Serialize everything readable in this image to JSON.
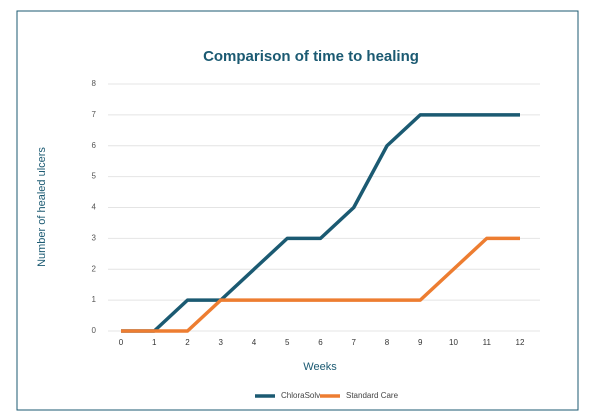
{
  "chart_data": {
    "type": "line",
    "title": "Comparison of time to healing",
    "xlabel": "Weeks",
    "ylabel": "Number of healed ulcers",
    "categories": [
      "0",
      "1",
      "2",
      "3",
      "4",
      "5",
      "6",
      "7",
      "8",
      "9",
      "10",
      "11",
      "12"
    ],
    "series": [
      {
        "name": "ChloraSolv",
        "color": "#1b5a72",
        "values": [
          0,
          0,
          1,
          1,
          2,
          3,
          3,
          4,
          6,
          7,
          7,
          7,
          7
        ]
      },
      {
        "name": "Standard Care",
        "color": "#ed7d31",
        "values": [
          0,
          0,
          0,
          1,
          1,
          1,
          1,
          1,
          1,
          1,
          2,
          3,
          3
        ]
      }
    ],
    "ylim": [
      0,
      8
    ],
    "yticks": [
      0,
      1,
      2,
      3,
      4,
      5,
      6,
      7,
      8
    ],
    "grid": true,
    "legend": "bottom"
  }
}
